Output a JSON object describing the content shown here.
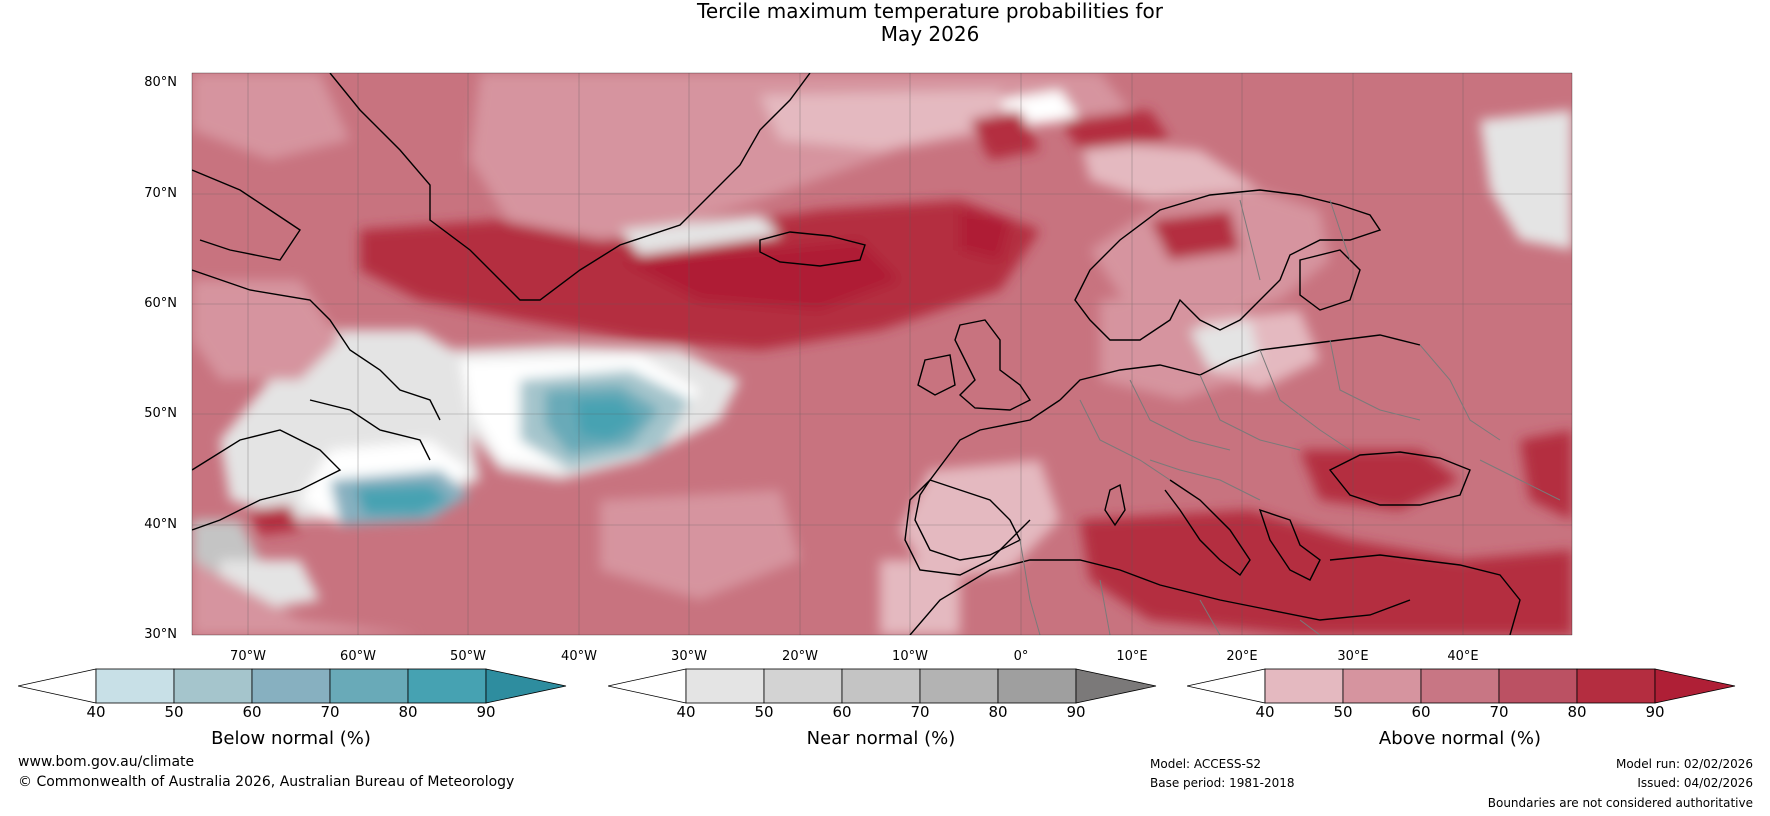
{
  "title_line1": "Tercile maximum temperature probabilities for",
  "title_line2": "May 2026",
  "lat_labels": [
    "80°N",
    "70°N",
    "60°N",
    "50°N",
    "40°N",
    "30°N"
  ],
  "lon_labels": [
    "70°W",
    "60°W",
    "50°W",
    "40°W",
    "30°W",
    "20°W",
    "10°W",
    "0°",
    "10°E",
    "20°E",
    "30°E",
    "40°E"
  ],
  "colorbars": [
    {
      "label": "Below normal (%)",
      "ticks": [
        "40",
        "50",
        "60",
        "70",
        "80",
        "90"
      ],
      "colors": [
        "#ffffff",
        "#c8e0e7",
        "#a5c5cc",
        "#87b0c0",
        "#69aab8",
        "#46a2b2",
        "#2e8d9f"
      ]
    },
    {
      "label": "Near normal (%)",
      "ticks": [
        "40",
        "50",
        "60",
        "70",
        "80",
        "90"
      ],
      "colors": [
        "#ffffff",
        "#e4e4e4",
        "#d3d3d3",
        "#c4c4c4",
        "#b3b3b3",
        "#9f9f9f",
        "#7b7979"
      ]
    },
    {
      "label": "Above normal (%)",
      "ticks": [
        "40",
        "50",
        "60",
        "70",
        "80",
        "90"
      ],
      "colors": [
        "#ffffff",
        "#e4b9c0",
        "#d6949f",
        "#c87684",
        "#bb5163",
        "#b42d40",
        "#af1f36"
      ]
    }
  ],
  "footer": {
    "website": "www.bom.gov.au/climate",
    "copyright": "© Commonwealth of Australia 2026, Australian Bureau of Meteorology",
    "model": "Model: ACCESS-S2",
    "base_period": "Base period: 1981-2018",
    "model_run": "Model run: 02/02/2026",
    "issued": "Issued: 04/02/2026",
    "disclaimer": "Boundaries are not considered authoritative"
  }
}
